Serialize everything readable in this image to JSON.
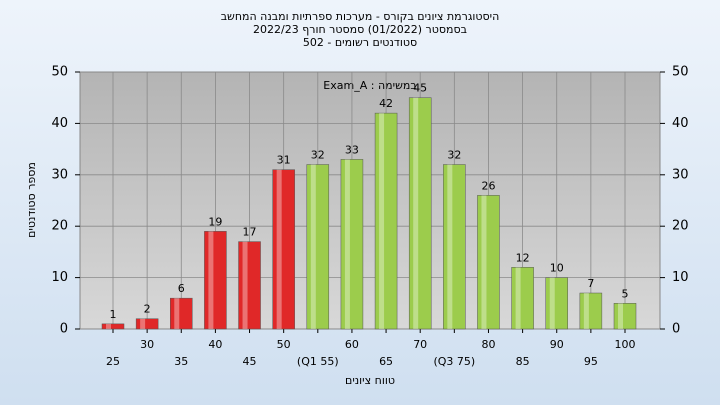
{
  "chart_data": {
    "type": "bar",
    "title": [
      "היסטוגרמת ציונים בקורס - מערכות ספרתיות ומבנה המחשב",
      "בסמסטר (01/2022)  סמסטר חורף 2022/23",
      "סטודנטים רשומים - 502"
    ],
    "annotation": "במשימה : Exam_A",
    "xlabel": "טווח ציונים",
    "ylabel": "מספר סטודנטים",
    "categories": [
      "25",
      "30",
      "35",
      "40",
      "45",
      "50",
      "(Q1 55)",
      "60",
      "65",
      "70",
      "(Q3 75)",
      "80",
      "85",
      "90",
      "95",
      "100"
    ],
    "values": [
      1,
      2,
      6,
      19,
      17,
      31,
      32,
      33,
      42,
      45,
      32,
      26,
      12,
      10,
      7,
      5
    ],
    "colors": [
      "#e02828",
      "#e02828",
      "#e02828",
      "#e02828",
      "#e02828",
      "#e02828",
      "#9ccc4c",
      "#9ccc4c",
      "#9ccc4c",
      "#9ccc4c",
      "#9ccc4c",
      "#9ccc4c",
      "#9ccc4c",
      "#9ccc4c",
      "#9ccc4c",
      "#9ccc4c"
    ],
    "ylim": [
      0,
      50
    ],
    "yticks": [
      0,
      10,
      20,
      30,
      40,
      50
    ],
    "grid": true
  }
}
